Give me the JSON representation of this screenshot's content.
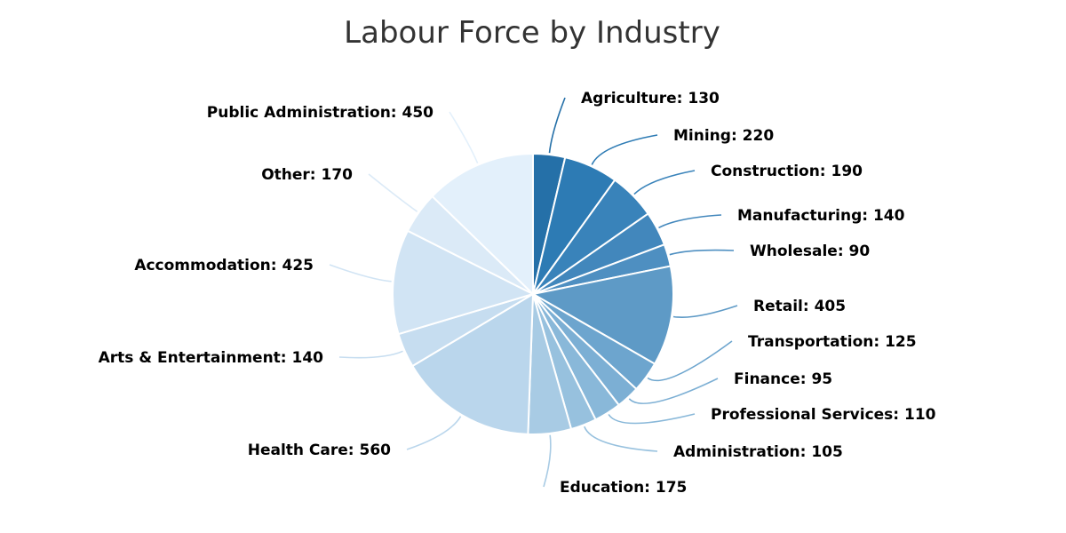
{
  "chart_data": {
    "type": "pie",
    "title": "Labour Force by Industry",
    "start_angle": "top",
    "direction": "clockwise",
    "slices": [
      {
        "label": "Agriculture",
        "value": 130,
        "color": "#2570A8"
      },
      {
        "label": "Mining",
        "value": 220,
        "color": "#2D7BB4"
      },
      {
        "label": "Construction",
        "value": 190,
        "color": "#3983BA"
      },
      {
        "label": "Manufacturing",
        "value": 140,
        "color": "#4287BC"
      },
      {
        "label": "Wholesale",
        "value": 90,
        "color": "#4E8FC1"
      },
      {
        "label": "Retail",
        "value": 405,
        "color": "#5E9AC6"
      },
      {
        "label": "Transportation",
        "value": 125,
        "color": "#6DA5CE"
      },
      {
        "label": "Finance",
        "value": 95,
        "color": "#7CAFD4"
      },
      {
        "label": "Professional Services",
        "value": 110,
        "color": "#89B8D9"
      },
      {
        "label": "Administration",
        "value": 105,
        "color": "#97C1DE"
      },
      {
        "label": "Education",
        "value": 175,
        "color": "#A8CBE4"
      },
      {
        "label": "Health Care",
        "value": 560,
        "color": "#BAD6EC"
      },
      {
        "label": "Arts & Entertainment",
        "value": 140,
        "color": "#C6DDF0"
      },
      {
        "label": "Accommodation",
        "value": 425,
        "color": "#D1E4F4"
      },
      {
        "label": "Other",
        "value": 170,
        "color": "#DBEAF7"
      },
      {
        "label": "Public Administration",
        "value": 450,
        "color": "#E3F0FB"
      }
    ]
  }
}
